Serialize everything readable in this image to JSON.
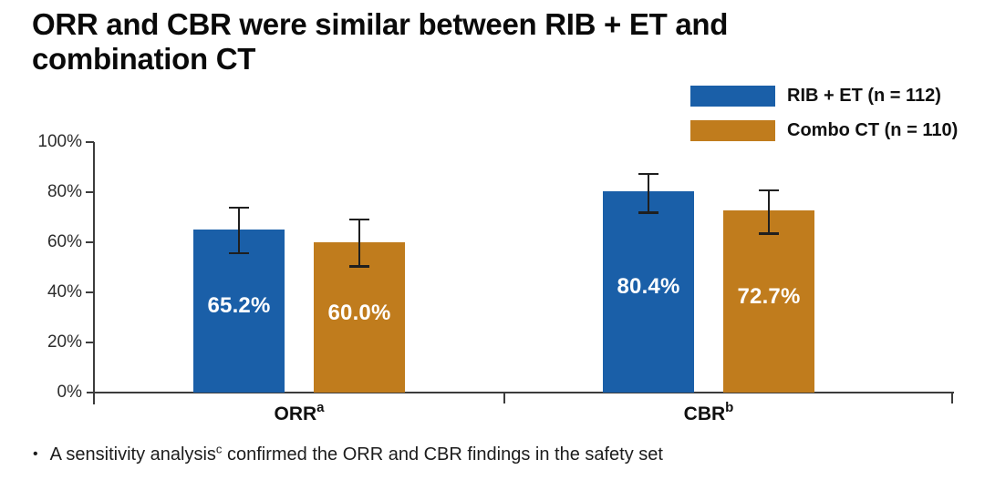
{
  "title": {
    "line1": "ORR and CBR were similar between RIB + ET and",
    "line2": "combination CT"
  },
  "legend": {
    "items": [
      {
        "label": "RIB + ET (n = 112)",
        "color": "#1a5fa8"
      },
      {
        "label": "Combo CT (n = 110)",
        "color": "#c07c1d"
      }
    ]
  },
  "footnote": {
    "bullet": "•",
    "text": "A sensitivity analysis",
    "superscript": "c",
    "rest": " confirmed the ORR and CBR findings in the safety set"
  },
  "chart_data": {
    "type": "bar",
    "title": "ORR and CBR were similar between RIB + ET and combination CT",
    "categories": [
      {
        "label": "ORR",
        "superscript": "a"
      },
      {
        "label": "CBR",
        "superscript": "b"
      }
    ],
    "series": [
      {
        "name": "RIB + ET (n = 112)",
        "color": "#1a5fa8",
        "values": [
          65.2,
          80.4
        ],
        "value_labels": [
          "65.2%",
          "80.4%"
        ],
        "error_low": [
          55.6,
          71.8
        ],
        "error_high": [
          73.9,
          87.3
        ]
      },
      {
        "name": "Combo CT (n = 110)",
        "color": "#c07c1d",
        "values": [
          60.0,
          72.7
        ],
        "value_labels": [
          "60.0%",
          "72.7%"
        ],
        "error_low": [
          50.2,
          63.4
        ],
        "error_high": [
          69.2,
          80.8
        ]
      }
    ],
    "xlabel": "",
    "ylabel": "",
    "ylim": [
      0,
      100
    ],
    "ytick_step_pct": 20,
    "ytick_labels": [
      "0%",
      "20%",
      "40%",
      "60%",
      "80%",
      "100%"
    ],
    "grid": false,
    "legend_position": "top-right",
    "bar_label_color": "#ffffff",
    "error_bar_color": "#1f1f1f",
    "axis_color": "#3c3c3c"
  }
}
